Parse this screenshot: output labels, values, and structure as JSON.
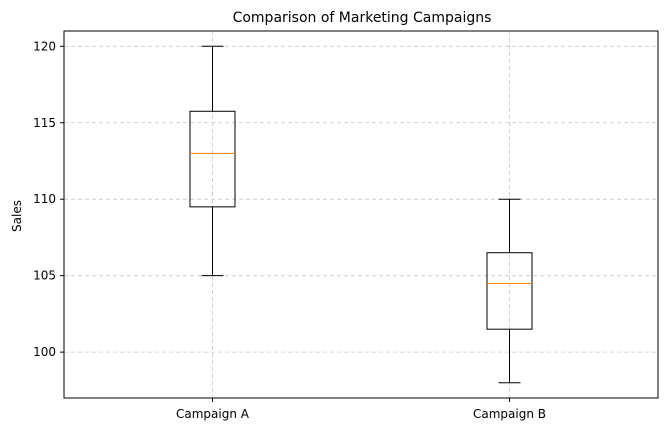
{
  "chart_data": {
    "type": "box",
    "title": "Comparison of Marketing Campaigns",
    "xlabel": "",
    "ylabel": "Sales",
    "ylim": [
      97,
      121
    ],
    "yticks": [
      100,
      105,
      110,
      115,
      120
    ],
    "grid": true,
    "categories": [
      "Campaign A",
      "Campaign B"
    ],
    "boxes": [
      {
        "category": "Campaign A",
        "whisker_low": 105,
        "q1": 109.5,
        "median": 113,
        "q3": 115.75,
        "whisker_high": 120
      },
      {
        "category": "Campaign B",
        "whisker_low": 98,
        "q1": 101.5,
        "median": 104.5,
        "q3": 106.5,
        "whisker_high": 110
      }
    ],
    "colors": {
      "box": "#000000",
      "median": "#ff7f0e",
      "grid": "#c8c8c8"
    }
  }
}
